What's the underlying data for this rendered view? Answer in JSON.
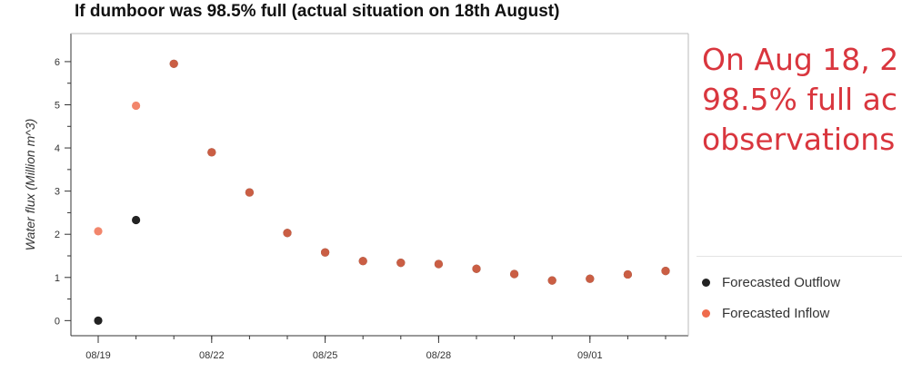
{
  "chart_data": {
    "type": "scatter",
    "title": "If dumboor was 98.5% full (actual situation on 18th August)",
    "xlabel": "",
    "ylabel": "Water flux (Million m^3)",
    "x_ticks": [
      "08/19",
      "08/22",
      "08/25",
      "08/28",
      "09/01"
    ],
    "y_ticks": [
      0,
      1,
      2,
      3,
      4,
      5,
      6
    ],
    "ylim": [
      -0.35,
      6.65
    ],
    "grid": false,
    "legend_position": "right",
    "series": [
      {
        "name": "Forecasted Outflow",
        "color": "#222222",
        "x": [
          "08/19",
          "08/20",
          "08/21",
          "08/22",
          "08/23",
          "08/24",
          "08/25",
          "08/26",
          "08/27",
          "08/28",
          "08/29",
          "08/30",
          "08/31",
          "09/01",
          "09/02",
          "09/03"
        ],
        "y": [
          0.0,
          2.33,
          5.95,
          3.9,
          2.97,
          2.03,
          1.58,
          1.38,
          1.34,
          1.31,
          1.2,
          1.08,
          0.93,
          0.97,
          1.07,
          1.15
        ]
      },
      {
        "name": "Forecasted Inflow",
        "color": "#ef6b4c",
        "x": [
          "08/19",
          "08/20",
          "08/21",
          "08/22",
          "08/23",
          "08/24",
          "08/25",
          "08/26",
          "08/27",
          "08/28",
          "08/29",
          "08/30",
          "08/31",
          "09/01",
          "09/02",
          "09/03"
        ],
        "y": [
          2.07,
          4.98,
          5.95,
          3.9,
          2.97,
          2.03,
          1.58,
          1.38,
          1.34,
          1.31,
          1.2,
          1.08,
          0.93,
          0.97,
          1.07,
          1.15
        ]
      }
    ]
  },
  "note": {
    "lines": [
      "On Aug 18, 2",
      "98.5% full ac",
      "observations"
    ]
  },
  "legend": {
    "outflow_label": "Forecasted Outflow",
    "inflow_label": "Forecasted Inflow"
  }
}
